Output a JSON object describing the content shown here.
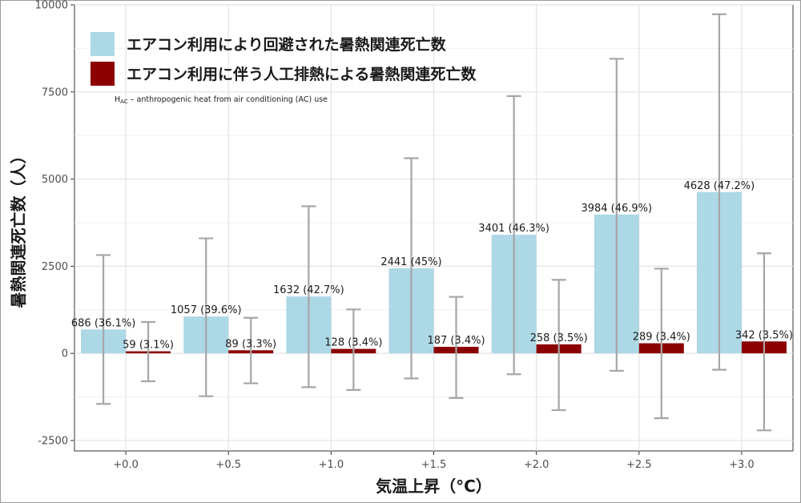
{
  "chart_data": {
    "type": "bar",
    "title": "",
    "xlabel": "気温上昇（°C）",
    "ylabel": "暑熱関連死亡数（人）",
    "categories": [
      "+0.0",
      "+0.5",
      "+1.0",
      "+1.5",
      "+2.0",
      "+2.5",
      "+3.0"
    ],
    "ylim": [
      -2800,
      10000
    ],
    "yticks": [
      -2500,
      0,
      2500,
      5000,
      7500,
      10000
    ],
    "grid": true,
    "legend_position": "top-left",
    "series": [
      {
        "name": "エアコン利用により回避された暑熱関連死亡数",
        "color": "#add8e6",
        "values": [
          686,
          1057,
          1632,
          2441,
          3401,
          3984,
          4628
        ],
        "labels": [
          "686 (36.1%)",
          "1057 (39.6%)",
          "1632 (42.7%)",
          "2441 (45%)",
          "3401 (46.3%)",
          "3984 (46.9%)",
          "4628 (47.2%)"
        ],
        "error_low": [
          -1450,
          -1230,
          -970,
          -720,
          -600,
          -500,
          -470
        ],
        "error_high": [
          2820,
          3300,
          4220,
          5600,
          7380,
          8450,
          9730
        ]
      },
      {
        "name": "エアコン利用に伴う人工排熱による暑熱関連死亡数",
        "color": "#8b0000",
        "values": [
          59,
          89,
          128,
          187,
          258,
          289,
          342
        ],
        "labels": [
          "59 (3.1%)",
          "89 (3.3%)",
          "128 (3.4%)",
          "187 (3.4%)",
          "258 (3.5%)",
          "289 (3.4%)",
          "342 (3.5%)"
        ],
        "error_low": [
          -800,
          -860,
          -1050,
          -1280,
          -1630,
          -1860,
          -2210
        ],
        "error_high": [
          900,
          1020,
          1260,
          1620,
          2110,
          2430,
          2870
        ]
      }
    ],
    "annotation": {
      "main": "H",
      "sub": "AC",
      "rest": " – anthropogenic heat from air conditioning (AC) use"
    }
  }
}
